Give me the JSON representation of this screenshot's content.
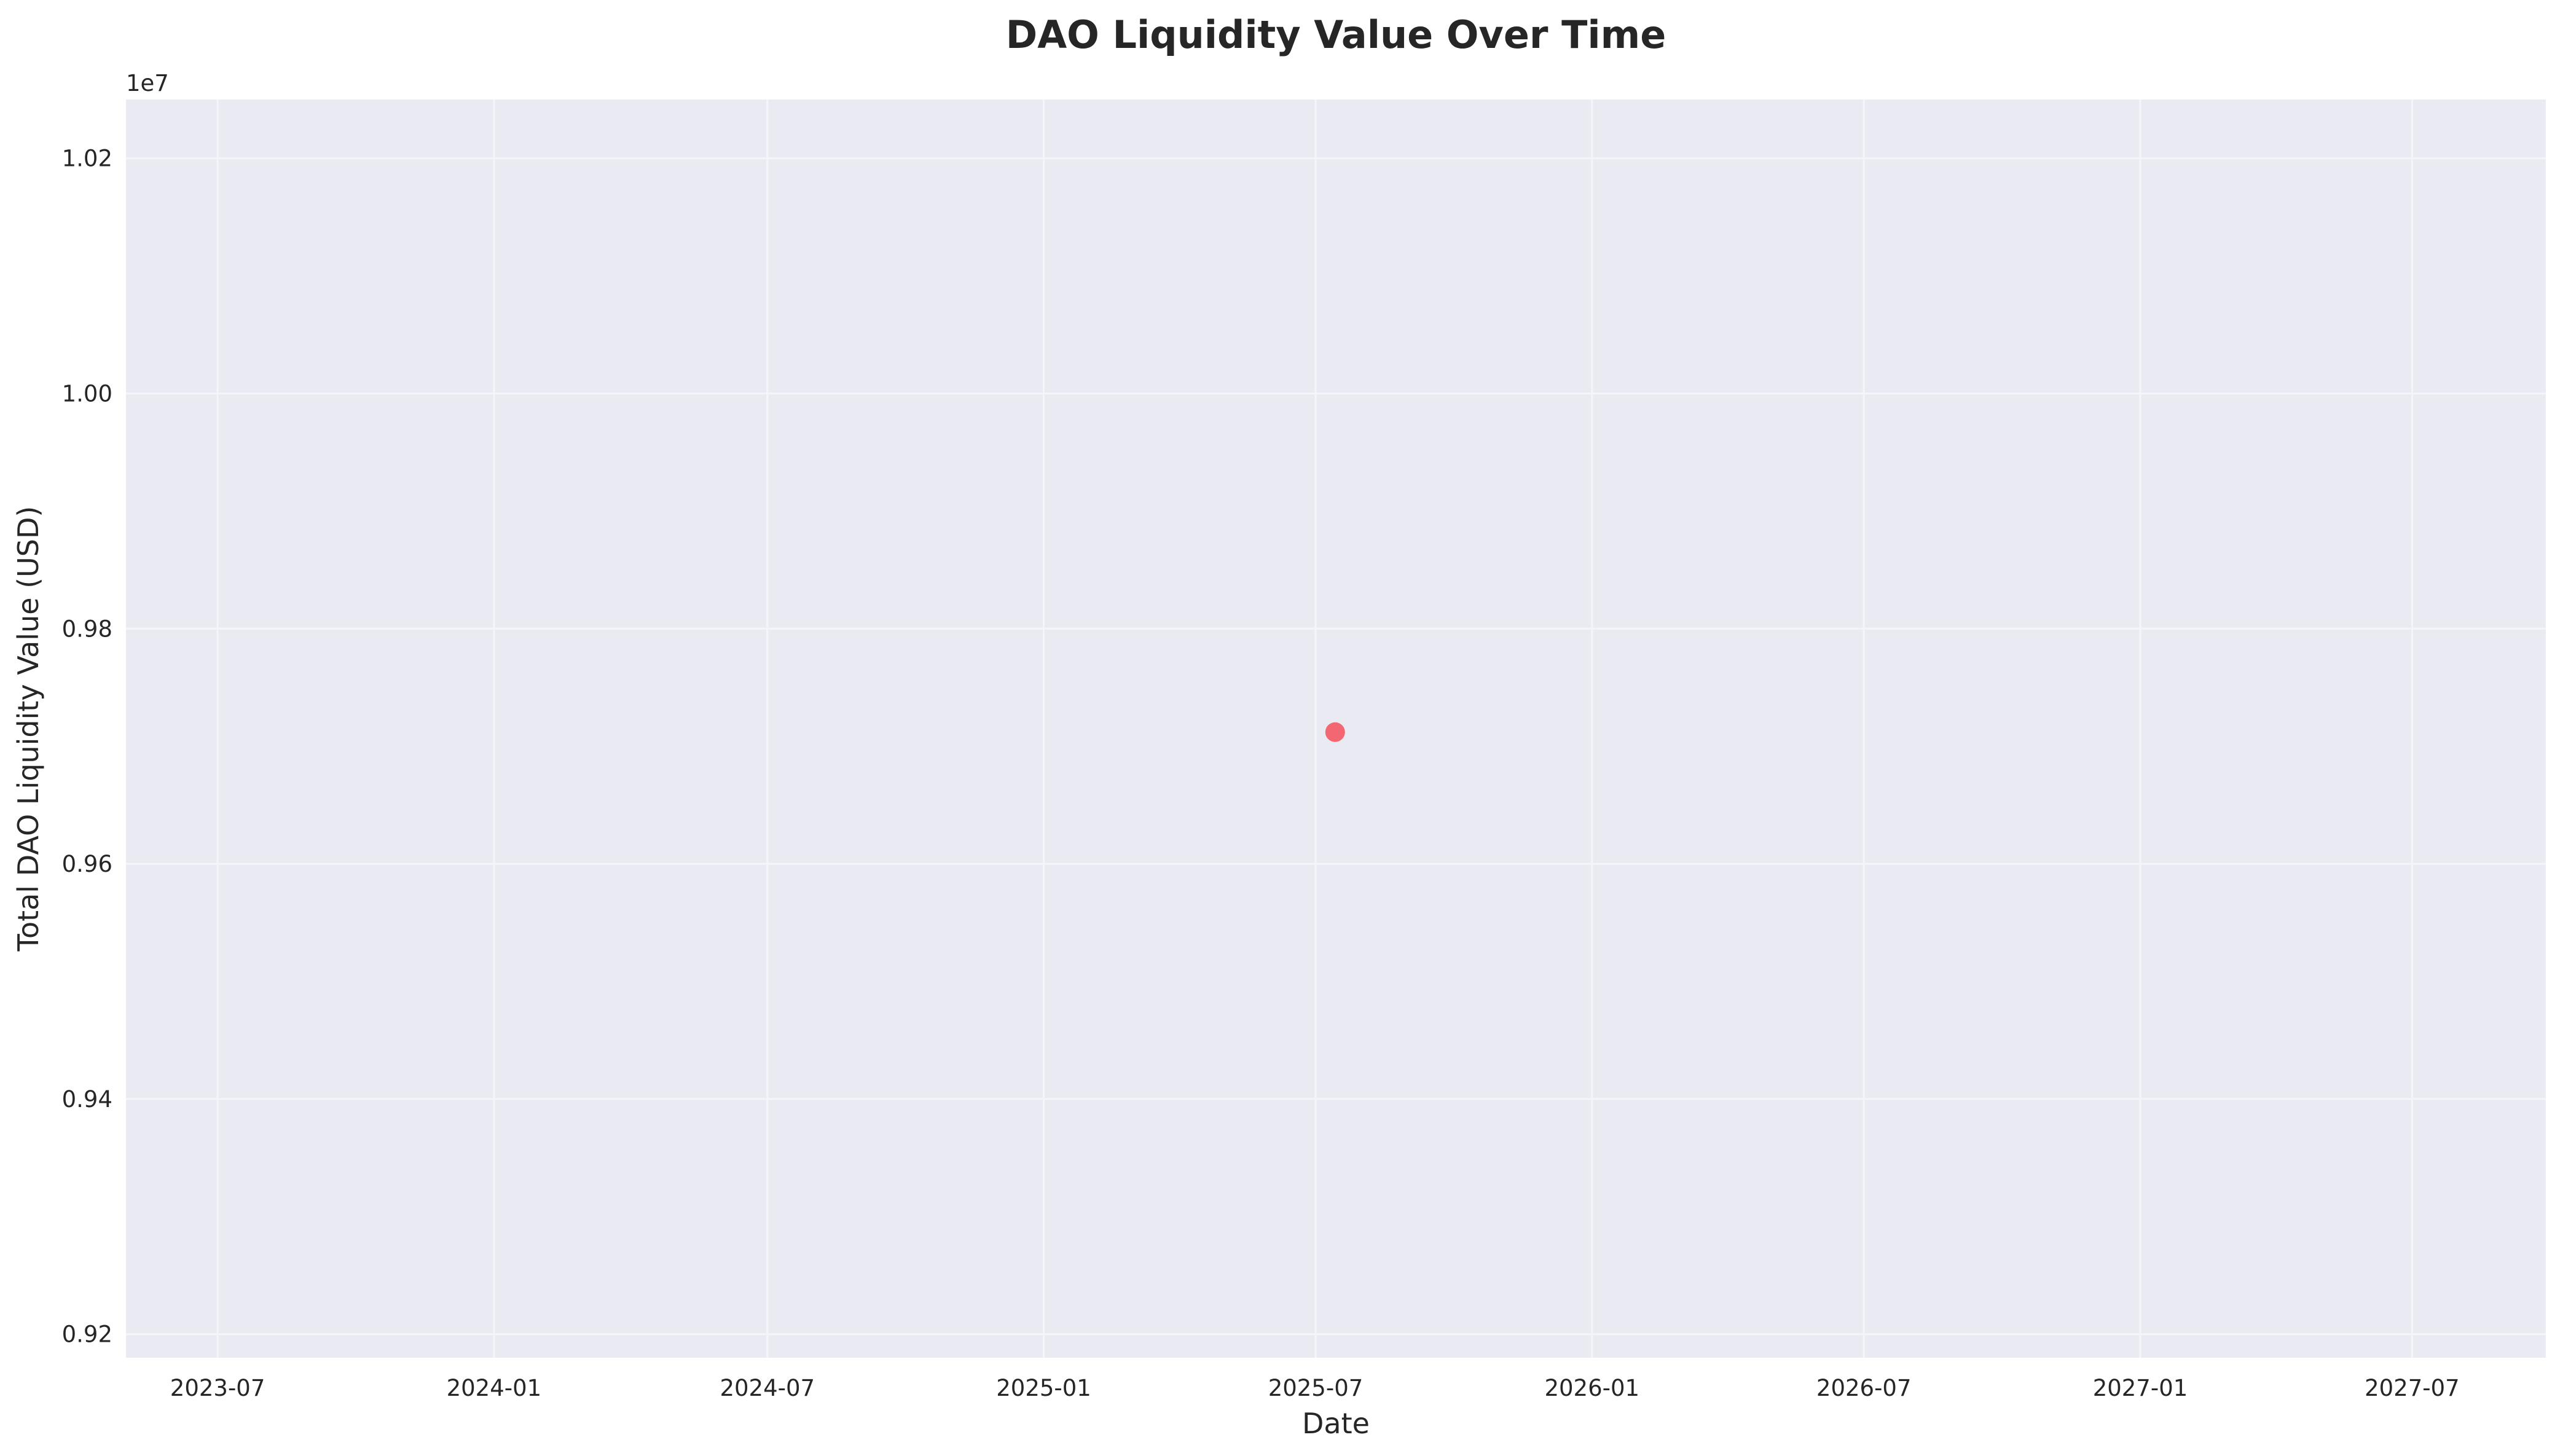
{
  "colors": {
    "plot_background": "#eaeaf2",
    "grid": "#f5f5f9",
    "marker": "#f2606a",
    "text": "#262626"
  },
  "chart_data": {
    "type": "scatter",
    "title": "DAO Liquidity Value Over Time",
    "xlabel": "Date",
    "ylabel": "Total DAO Liquidity Value (USD)",
    "y_offset_label": "1e7",
    "x_ticks": [
      "2023-07",
      "2024-01",
      "2024-07",
      "2025-01",
      "2025-07",
      "2026-01",
      "2026-07",
      "2027-01",
      "2027-07"
    ],
    "y_ticks": [
      "0.92",
      "0.94",
      "0.96",
      "0.98",
      "1.00",
      "1.02"
    ],
    "xlim": [
      "2023-05-01",
      "2027-09-28"
    ],
    "ylim": [
      9180000,
      10250000
    ],
    "grid": true,
    "series": [
      {
        "points": [
          {
            "x": "2025-07-14",
            "y": 9712000
          }
        ]
      }
    ]
  }
}
